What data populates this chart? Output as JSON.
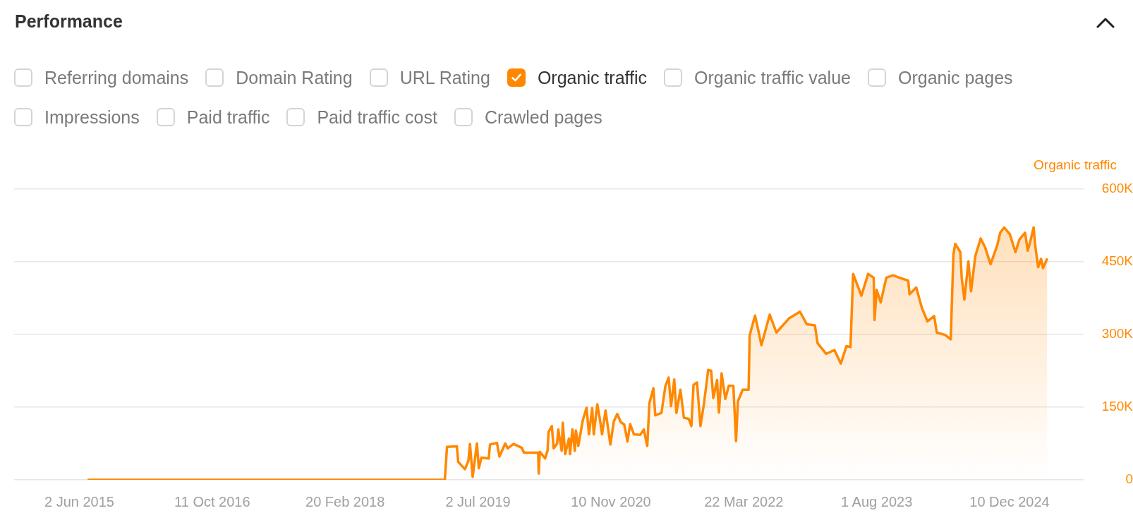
{
  "chart_data": {
    "type": "area",
    "title": "Performance",
    "ylabel": "Organic traffic",
    "annotations": [
      "Referring domains",
      "Domain Rating",
      "URL Rating",
      "Organic traffic value",
      "Organic pages",
      "Impressions",
      "Paid traffic",
      "Paid traffic cost",
      "Crawled pages"
    ],
    "legend": "top left",
    "grid": "y",
    "xlim": [
      "2014-10-01",
      "2025-09-13"
    ],
    "xticks": [
      {
        "value": "2015-06-02",
        "label": "2 Jun 2015"
      },
      {
        "value": "2016-10-11",
        "label": "11 Oct 2016"
      },
      {
        "value": "2018-02-20",
        "label": "20 Feb 2018"
      },
      {
        "value": "2019-07-02",
        "label": "2 Jul 2019"
      },
      {
        "value": "2020-11-10",
        "label": "10 Nov 2020"
      },
      {
        "value": "2022-03-22",
        "label": "22 Mar 2022"
      },
      {
        "value": "2023-08-01",
        "label": "1 Aug 2023"
      },
      {
        "value": "2024-12-10",
        "label": "10 Dec 2024"
      }
    ],
    "ylim": [
      0,
      600000
    ],
    "yticks": [
      {
        "value": 0,
        "label": "0"
      },
      {
        "value": 150000,
        "label": "150K"
      },
      {
        "value": 300000,
        "label": "300K"
      },
      {
        "value": 450000,
        "label": "450K"
      },
      {
        "value": 600000,
        "label": "600K"
      }
    ],
    "series": [
      {
        "name": "Organic traffic",
        "color": "#ff8800",
        "x": [
          "2015-07-03",
          "2019-02-28",
          "2019-03-08",
          "2019-04-14",
          "2019-04-19",
          "2019-05-14",
          "2019-05-27",
          "2019-06-02",
          "2019-06-12",
          "2019-06-28",
          "2019-07-05",
          "2019-07-15",
          "2019-08-11",
          "2019-08-16",
          "2019-09-11",
          "2019-09-20",
          "2019-10-12",
          "2019-10-21",
          "2019-11-12",
          "2019-12-13",
          "2019-12-21",
          "2020-01-17",
          "2020-02-12",
          "2020-02-14",
          "2020-02-18",
          "2020-03-09",
          "2020-03-18",
          "2020-03-22",
          "2020-04-03",
          "2020-04-10",
          "2020-04-23",
          "2020-04-27",
          "2020-05-10",
          "2020-05-14",
          "2020-05-23",
          "2020-06-06",
          "2020-06-10",
          "2020-06-19",
          "2020-06-28",
          "2020-07-02",
          "2020-07-11",
          "2020-07-28",
          "2020-08-11",
          "2020-08-20",
          "2020-09-01",
          "2020-09-07",
          "2020-09-20",
          "2020-09-29",
          "2020-10-08",
          "2020-10-21",
          "2020-11-08",
          "2020-11-21",
          "2020-12-04",
          "2020-12-17",
          "2020-12-30",
          "2021-01-11",
          "2021-01-21",
          "2021-02-04",
          "2021-02-28",
          "2021-03-13",
          "2021-03-26",
          "2021-04-03",
          "2021-04-18",
          "2021-04-25",
          "2021-05-18",
          "2021-06-02",
          "2021-06-14",
          "2021-06-23",
          "2021-07-05",
          "2021-07-13",
          "2021-07-28",
          "2021-08-10",
          "2021-08-28",
          "2021-09-07",
          "2021-09-15",
          "2021-09-28",
          "2021-10-11",
          "2021-10-24",
          "2021-11-09",
          "2021-11-20",
          "2021-11-28",
          "2021-12-12",
          "2021-12-19",
          "2021-12-29",
          "2022-01-12",
          "2022-01-25",
          "2022-02-11",
          "2022-02-21",
          "2022-02-28",
          "2022-03-18",
          "2022-04-09",
          "2022-04-13",
          "2022-05-03",
          "2022-05-14",
          "2022-05-27",
          "2022-06-27",
          "2022-07-22",
          "2022-09-07",
          "2022-10-18",
          "2022-11-13",
          "2022-12-13",
          "2022-12-23",
          "2023-01-24",
          "2023-02-24",
          "2023-03-20",
          "2023-04-10",
          "2023-04-25",
          "2023-05-05",
          "2023-06-05",
          "2023-06-30",
          "2023-07-21",
          "2023-07-24",
          "2023-08-01",
          "2023-08-16",
          "2023-09-06",
          "2023-10-01",
          "2023-10-26",
          "2023-11-27",
          "2023-12-02",
          "2023-12-27",
          "2024-01-17",
          "2024-02-07",
          "2024-03-03",
          "2024-03-13",
          "2024-04-13",
          "2024-05-04",
          "2024-05-14",
          "2024-05-21",
          "2024-06-09",
          "2024-06-14",
          "2024-06-24",
          "2024-07-09",
          "2024-07-19",
          "2024-08-04",
          "2024-08-24",
          "2024-09-10",
          "2024-09-30",
          "2024-10-25",
          "2024-11-05",
          "2024-11-20",
          "2024-12-11",
          "2025-01-01",
          "2025-01-16",
          "2025-02-06",
          "2025-02-16",
          "2025-02-26",
          "2025-03-10",
          "2025-03-17",
          "2025-03-27",
          "2025-04-07",
          "2025-04-14",
          "2025-04-30"
        ],
        "values": [
          0,
          0,
          68000,
          69000,
          37000,
          22000,
          39000,
          74000,
          6000,
          75000,
          24000,
          46000,
          44000,
          73000,
          76000,
          48000,
          75000,
          65000,
          74000,
          66000,
          56000,
          56000,
          56000,
          13000,
          58000,
          44000,
          60000,
          99000,
          111000,
          65000,
          75000,
          104000,
          60000,
          118000,
          53000,
          85000,
          53000,
          104000,
          60000,
          102000,
          70000,
          123000,
          149000,
          94000,
          148000,
          94000,
          156000,
          128000,
          94000,
          143000,
          73000,
          121000,
          136000,
          119000,
          114000,
          79000,
          115000,
          94000,
          93000,
          104000,
          70000,
          158000,
          189000,
          133000,
          138000,
          194000,
          211000,
          152000,
          207000,
          138000,
          186000,
          128000,
          126000,
          111000,
          196000,
          201000,
          111000,
          157000,
          227000,
          225000,
          169000,
          206000,
          139000,
          220000,
          167000,
          194000,
          194000,
          80000,
          162000,
          186000,
          186000,
          298000,
          339000,
          312000,
          278000,
          341000,
          304000,
          333000,
          347000,
          321000,
          319000,
          282000,
          260000,
          268000,
          240000,
          276000,
          274000,
          425000,
          380000,
          425000,
          417000,
          330000,
          392000,
          366000,
          417000,
          422000,
          417000,
          411000,
          383000,
          397000,
          355000,
          327000,
          338000,
          304000,
          299000,
          290000,
          465000,
          487000,
          470000,
          417000,
          372000,
          451000,
          389000,
          462000,
          498000,
          479000,
          445000,
          484000,
          510000,
          521000,
          507000,
          470000,
          496000,
          510000,
          473000,
          493000,
          521000,
          479000,
          439000,
          456000,
          437000,
          457000
        ]
      }
    ]
  }
}
